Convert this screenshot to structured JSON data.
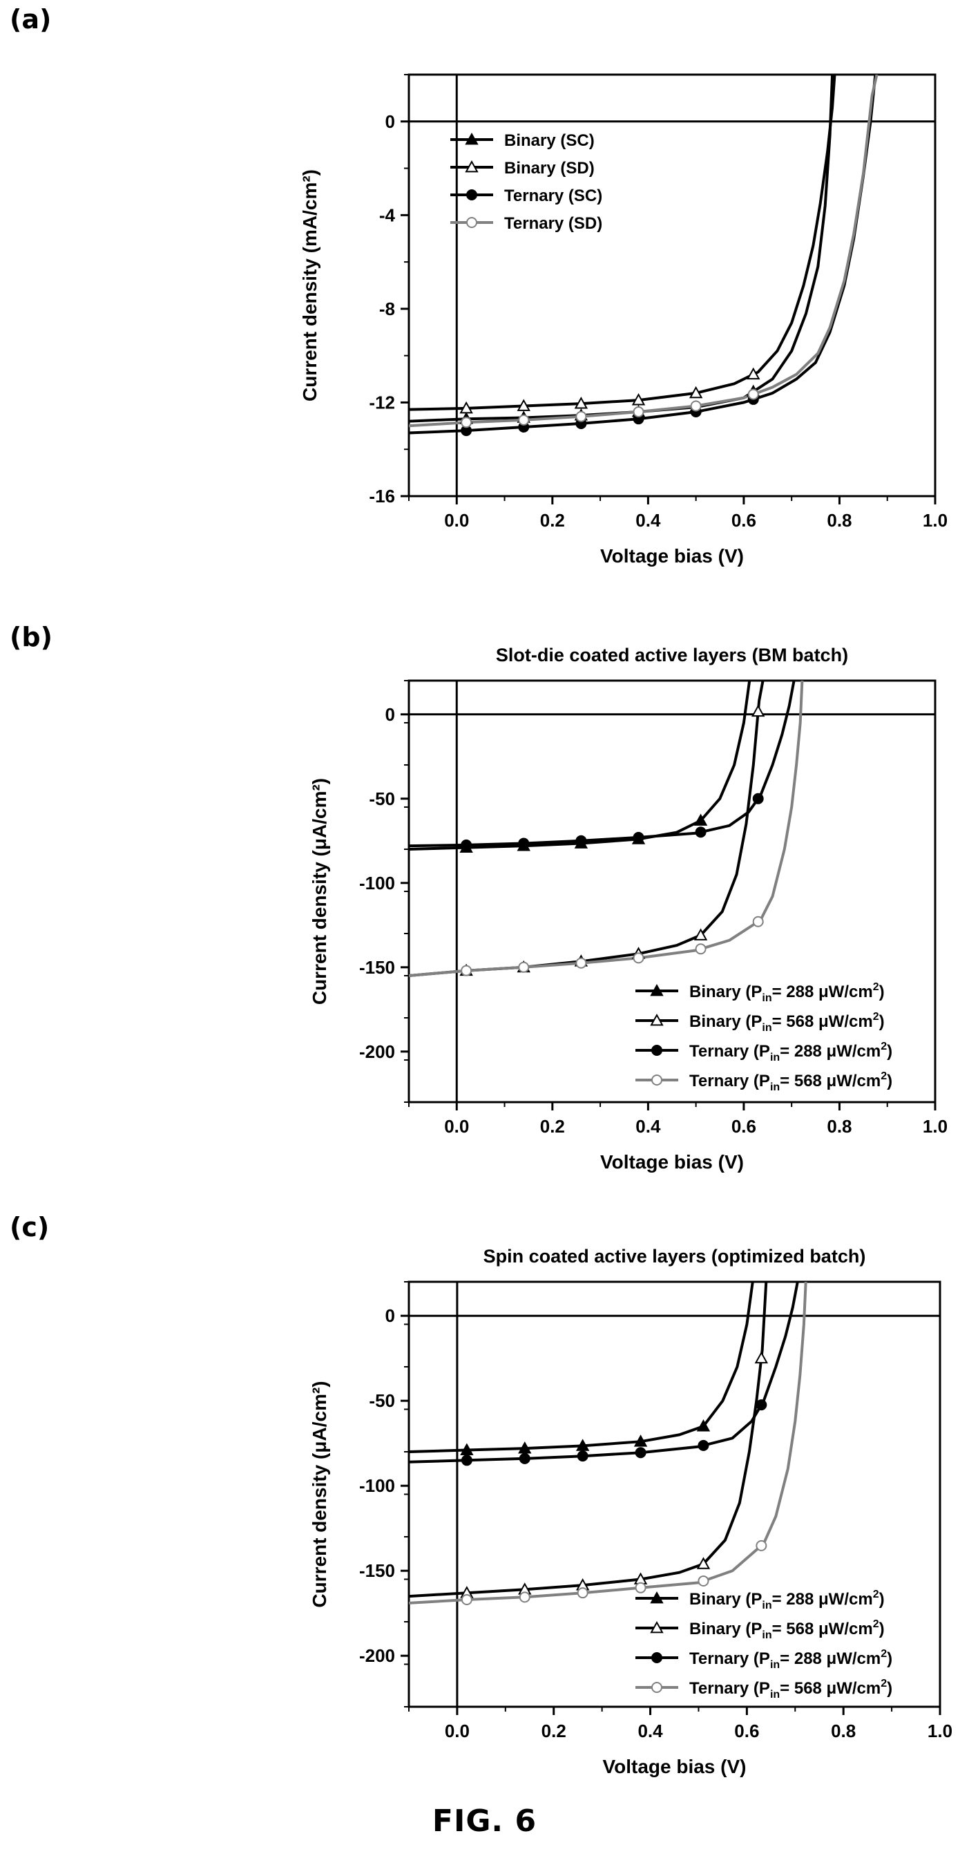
{
  "figure_label": "FIG. 6",
  "colors": {
    "black": "#000000",
    "gray": "#808080"
  },
  "chart_data": [
    {
      "panel": "(a)",
      "type": "line",
      "title": "",
      "xlabel": "Voltage bias (V)",
      "ylabel": "Current density (mA/cm²)",
      "xlim": [
        -0.1,
        1.0
      ],
      "ylim": [
        -16,
        2
      ],
      "xticks": [
        0.0,
        0.2,
        0.4,
        0.6,
        0.8,
        1.0
      ],
      "xtick_labels": [
        "0.0",
        "0.2",
        "0.4",
        "0.6",
        "0.8",
        "1.0"
      ],
      "yticks": [
        0,
        -4,
        -8,
        -12,
        -16
      ],
      "ytick_labels": [
        "0",
        "-4",
        "-8",
        "-12",
        "-16"
      ],
      "legend_position": "top-left",
      "series": [
        {
          "name": "Binary (SC)",
          "color": "#000000",
          "marker": "filled-triangle",
          "x": [
            -0.1,
            0.02,
            0.14,
            0.26,
            0.38,
            0.5,
            0.6,
            0.66,
            0.7,
            0.73,
            0.755,
            0.77,
            0.78,
            0.785
          ],
          "y": [
            -12.8,
            -12.7,
            -12.65,
            -12.55,
            -12.4,
            -12.2,
            -11.8,
            -11.0,
            -9.8,
            -8.2,
            -6.2,
            -3.6,
            -0.6,
            2.0
          ]
        },
        {
          "name": "Binary (SD)",
          "color": "#000000",
          "marker": "open-triangle",
          "x": [
            -0.1,
            0.02,
            0.14,
            0.26,
            0.38,
            0.5,
            0.58,
            0.63,
            0.67,
            0.7,
            0.725,
            0.745,
            0.76,
            0.775,
            0.785,
            0.79
          ],
          "y": [
            -12.3,
            -12.25,
            -12.15,
            -12.05,
            -11.9,
            -11.6,
            -11.2,
            -10.7,
            -9.8,
            -8.6,
            -7.0,
            -5.3,
            -3.5,
            -1.3,
            0.6,
            2.0
          ]
        },
        {
          "name": "Ternary (SC)",
          "color": "#000000",
          "marker": "filled-circle",
          "x": [
            -0.1,
            0.02,
            0.14,
            0.26,
            0.38,
            0.5,
            0.6,
            0.66,
            0.71,
            0.75,
            0.78,
            0.81,
            0.83,
            0.85,
            0.865,
            0.875
          ],
          "y": [
            -13.3,
            -13.2,
            -13.05,
            -12.9,
            -12.7,
            -12.4,
            -12.0,
            -11.6,
            -11.0,
            -10.3,
            -9.0,
            -7.0,
            -5.0,
            -2.3,
            0.0,
            2.0
          ]
        },
        {
          "name": "Ternary (SD)",
          "color": "#808080",
          "marker": "open-circle",
          "x": [
            -0.1,
            0.02,
            0.14,
            0.26,
            0.38,
            0.5,
            0.6,
            0.66,
            0.71,
            0.755,
            0.78,
            0.81,
            0.83,
            0.85,
            0.868,
            0.878
          ],
          "y": [
            -13.0,
            -12.85,
            -12.75,
            -12.6,
            -12.4,
            -12.15,
            -11.8,
            -11.35,
            -10.8,
            -9.9,
            -8.8,
            -6.8,
            -4.8,
            -2.2,
            1.1,
            2.0
          ]
        }
      ]
    },
    {
      "panel": "(b)",
      "type": "line",
      "title": "Slot-die coated active layers (BM batch)",
      "xlabel": "Voltage bias (V)",
      "ylabel": "Current density (μA/cm²)",
      "xlim": [
        -0.1,
        1.0
      ],
      "ylim": [
        -230,
        20
      ],
      "xticks": [
        0.0,
        0.2,
        0.4,
        0.6,
        0.8,
        1.0
      ],
      "xtick_labels": [
        "0.0",
        "0.2",
        "0.4",
        "0.6",
        "0.8",
        "1.0"
      ],
      "yticks": [
        0,
        -50,
        -100,
        -150,
        -200
      ],
      "ytick_labels": [
        "0",
        "-50",
        "-100",
        "-150",
        "-200"
      ],
      "legend_position": "bottom-right",
      "series": [
        {
          "name_main": "Binary (P",
          "name_sub": "in",
          "name_rest": "= 288 μW/cm",
          "name_sup": "2",
          "name_end": ")",
          "color": "#000000",
          "marker": "filled-triangle",
          "x": [
            -0.1,
            0.02,
            0.14,
            0.26,
            0.38,
            0.46,
            0.51,
            0.55,
            0.58,
            0.6,
            0.612
          ],
          "y": [
            -80,
            -79,
            -78,
            -76.5,
            -74,
            -70,
            -63,
            -50,
            -30,
            -5,
            20
          ]
        },
        {
          "name_main": "Binary (P",
          "name_sub": "in",
          "name_rest": "= 568 μW/cm",
          "name_sup": "2",
          "name_end": ")",
          "color": "#000000",
          "marker": "open-triangle",
          "x": [
            -0.1,
            0.02,
            0.14,
            0.26,
            0.38,
            0.46,
            0.51,
            0.555,
            0.585,
            0.605,
            0.62,
            0.632,
            0.64
          ],
          "y": [
            -155,
            -152,
            -150,
            -146.5,
            -142,
            -137,
            -131,
            -117,
            -95,
            -65,
            -30,
            8,
            20
          ]
        },
        {
          "name_main": "Ternary (P",
          "name_sub": "in",
          "name_rest": "= 288 μW/cm",
          "name_sup": "2",
          "name_end": ")",
          "color": "#000000",
          "marker": "filled-circle",
          "x": [
            -0.1,
            0.02,
            0.14,
            0.26,
            0.38,
            0.5,
            0.57,
            0.61,
            0.635,
            0.66,
            0.68,
            0.695,
            0.705
          ],
          "y": [
            -78,
            -77.5,
            -76.5,
            -75,
            -73,
            -70.5,
            -66,
            -58,
            -48,
            -30,
            -12,
            5,
            20
          ]
        },
        {
          "name_main": "Ternary (P",
          "name_sub": "in",
          "name_rest": "= 568 μW/cm",
          "name_sup": "2",
          "name_end": ")",
          "color": "#808080",
          "marker": "open-circle",
          "x": [
            -0.1,
            0.02,
            0.14,
            0.26,
            0.38,
            0.5,
            0.57,
            0.635,
            0.66,
            0.685,
            0.7,
            0.71,
            0.718,
            0.722
          ],
          "y": [
            -155,
            -152,
            -150,
            -147.5,
            -144.5,
            -140,
            -134,
            -122,
            -108,
            -80,
            -55,
            -30,
            -5,
            20
          ]
        }
      ]
    },
    {
      "panel": "(c)",
      "type": "line",
      "title": "Spin coated active layers (optimized batch)",
      "xlabel": "Voltage bias (V)",
      "ylabel": "Current density (μA/cm²)",
      "xlim": [
        -0.1,
        1.0
      ],
      "ylim": [
        -230,
        20
      ],
      "xticks": [
        0.0,
        0.2,
        0.4,
        0.6,
        0.8,
        1.0
      ],
      "xtick_labels": [
        "0.0",
        "0.2",
        "0.4",
        "0.6",
        "0.8",
        "1.0"
      ],
      "yticks": [
        0,
        -50,
        -100,
        -150,
        -200
      ],
      "ytick_labels": [
        "0",
        "-50",
        "-100",
        "-150",
        "-200"
      ],
      "legend_position": "bottom-right",
      "series": [
        {
          "name_main": "Binary (P",
          "name_sub": "in",
          "name_rest": "= 288 μW/cm",
          "name_sup": "2",
          "name_end": ")",
          "color": "#000000",
          "marker": "filled-triangle",
          "x": [
            -0.1,
            0.02,
            0.14,
            0.26,
            0.38,
            0.46,
            0.51,
            0.55,
            0.58,
            0.6,
            0.612
          ],
          "y": [
            -80,
            -79,
            -78,
            -76.5,
            -74,
            -70,
            -65,
            -50,
            -30,
            -5,
            20
          ]
        },
        {
          "name_main": "Binary (P",
          "name_sub": "in",
          "name_rest": "= 568 μW/cm",
          "name_sup": "2",
          "name_end": ")",
          "color": "#000000",
          "marker": "open-triangle",
          "x": [
            -0.1,
            0.02,
            0.14,
            0.26,
            0.38,
            0.46,
            0.51,
            0.555,
            0.585,
            0.605,
            0.62,
            0.632,
            0.64
          ],
          "y": [
            -165,
            -163,
            -161,
            -158.5,
            -155,
            -151,
            -146,
            -132,
            -110,
            -80,
            -50,
            -20,
            20
          ]
        },
        {
          "name_main": "Ternary (P",
          "name_sub": "in",
          "name_rest": "= 288 μW/cm",
          "name_sup": "2",
          "name_end": ")",
          "color": "#000000",
          "marker": "filled-circle",
          "x": [
            -0.1,
            0.02,
            0.14,
            0.26,
            0.38,
            0.5,
            0.57,
            0.61,
            0.635,
            0.66,
            0.68,
            0.695,
            0.705
          ],
          "y": [
            -86,
            -85,
            -84,
            -82.5,
            -80.5,
            -77,
            -72,
            -62,
            -50,
            -30,
            -12,
            5,
            20
          ]
        },
        {
          "name_main": "Ternary (P",
          "name_sub": "in",
          "name_rest": "= 568 μW/cm",
          "name_sup": "2",
          "name_end": ")",
          "color": "#808080",
          "marker": "open-circle",
          "x": [
            -0.1,
            0.02,
            0.14,
            0.26,
            0.38,
            0.5,
            0.57,
            0.635,
            0.66,
            0.685,
            0.7,
            0.71,
            0.718,
            0.722
          ],
          "y": [
            -169,
            -167,
            -165.5,
            -163,
            -160,
            -157,
            -150,
            -134,
            -118,
            -90,
            -62,
            -35,
            -5,
            20
          ]
        }
      ]
    }
  ]
}
